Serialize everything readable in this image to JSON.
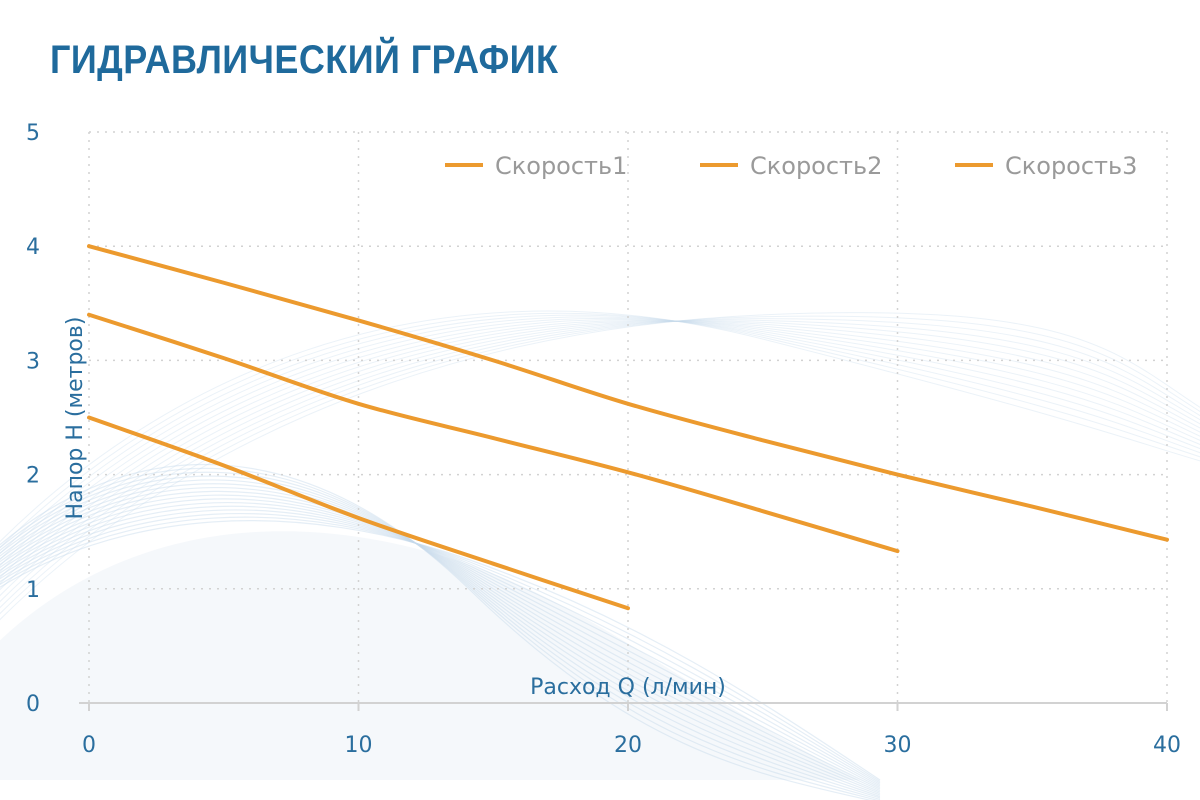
{
  "colors": {
    "title": "#1f6a9c",
    "axis_text": "#2a6e9e",
    "series": "#ec9a2e",
    "grid": "#d2d2d2",
    "legend_text": "#9a9a9a",
    "decor": "#c6d9ea"
  },
  "chart_data": {
    "type": "line",
    "title": "ГИДРАВЛИЧЕСКИЙ ГРАФИК",
    "xlabel": "Расход Q (л/мин)",
    "ylabel": "Напор H (метров)",
    "xlim": [
      0,
      40
    ],
    "ylim": [
      0,
      5
    ],
    "xticks": [
      0,
      10,
      20,
      30,
      40
    ],
    "yticks": [
      0,
      1,
      2,
      3,
      4,
      5
    ],
    "grid": true,
    "legend_position": "top-right",
    "series": [
      {
        "name": "Скорость1",
        "x": [
          0,
          5,
          10,
          15,
          20,
          25,
          30,
          35,
          40
        ],
        "y": [
          4.0,
          3.68,
          3.35,
          3.0,
          2.62,
          2.3,
          2.0,
          1.72,
          1.43
        ]
      },
      {
        "name": "Скорость2",
        "x": [
          0,
          5,
          10,
          15,
          20,
          25,
          30
        ],
        "y": [
          3.4,
          3.02,
          2.62,
          2.32,
          2.02,
          1.68,
          1.33
        ]
      },
      {
        "name": "Скорость3",
        "x": [
          0,
          5,
          10,
          15,
          20
        ],
        "y": [
          2.5,
          2.08,
          1.62,
          1.22,
          0.83
        ]
      }
    ]
  }
}
